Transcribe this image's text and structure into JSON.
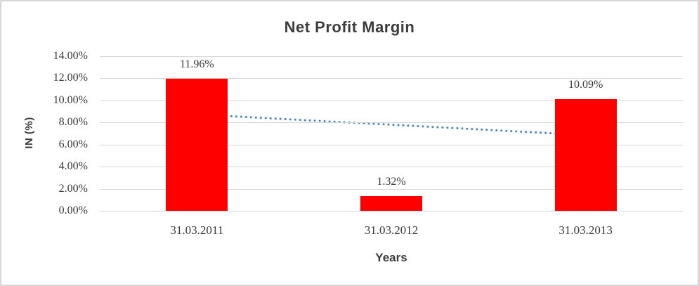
{
  "chart_data": {
    "type": "bar",
    "title": "Net Profit Margin",
    "xlabel": "Years",
    "ylabel": "IN (%)",
    "categories": [
      "31.03.2011",
      "31.03.2012",
      "31.03.2013"
    ],
    "series": [
      {
        "name": "Net Profit Margin",
        "values": [
          11.96,
          1.32,
          10.09
        ]
      }
    ],
    "data_labels": [
      "11.96%",
      "1.32%",
      "10.09%"
    ],
    "yticks": [
      "0.00%",
      "2.00%",
      "4.00%",
      "6.00%",
      "8.00%",
      "10.00%",
      "12.00%",
      "14.00%"
    ],
    "ytick_values": [
      0,
      2,
      4,
      6,
      8,
      10,
      12,
      14
    ],
    "ylim": [
      0,
      14
    ],
    "grid": "horizontal",
    "legend": "none",
    "bar_color": "#ff0000",
    "trendline": {
      "style": "dotted",
      "color": "#4a86c6",
      "start_value_pct": 8.73,
      "end_value_pct": 6.86
    },
    "colors": {
      "title_text": "#3d3d3d",
      "number_text": "#393939",
      "gridline": "#d6d6d6",
      "chart_border": "#d8d8d8"
    }
  }
}
